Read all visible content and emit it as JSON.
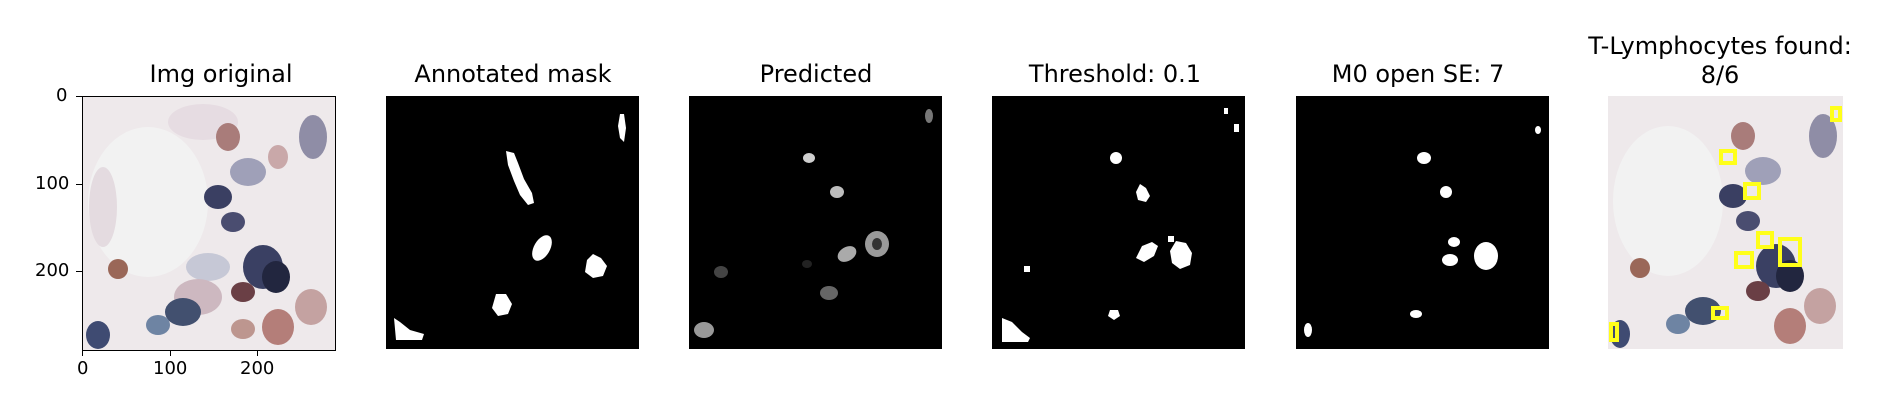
{
  "panels": [
    {
      "title": "Img original"
    },
    {
      "title": "Annotated mask"
    },
    {
      "title": "Predicted"
    },
    {
      "title": "Threshold: 0.1"
    },
    {
      "title": "M0 open SE: 7"
    },
    {
      "title_line1": "T-Lymphocytes found:",
      "title_line2": "8/6"
    }
  ],
  "axes": {
    "y_ticks": [
      "0",
      "100",
      "200"
    ],
    "x_ticks": [
      "0",
      "100",
      "200"
    ]
  },
  "colors": {
    "box": "#ffff1a",
    "mask_bg": "#000000",
    "mask_fg": "#ffffff"
  }
}
